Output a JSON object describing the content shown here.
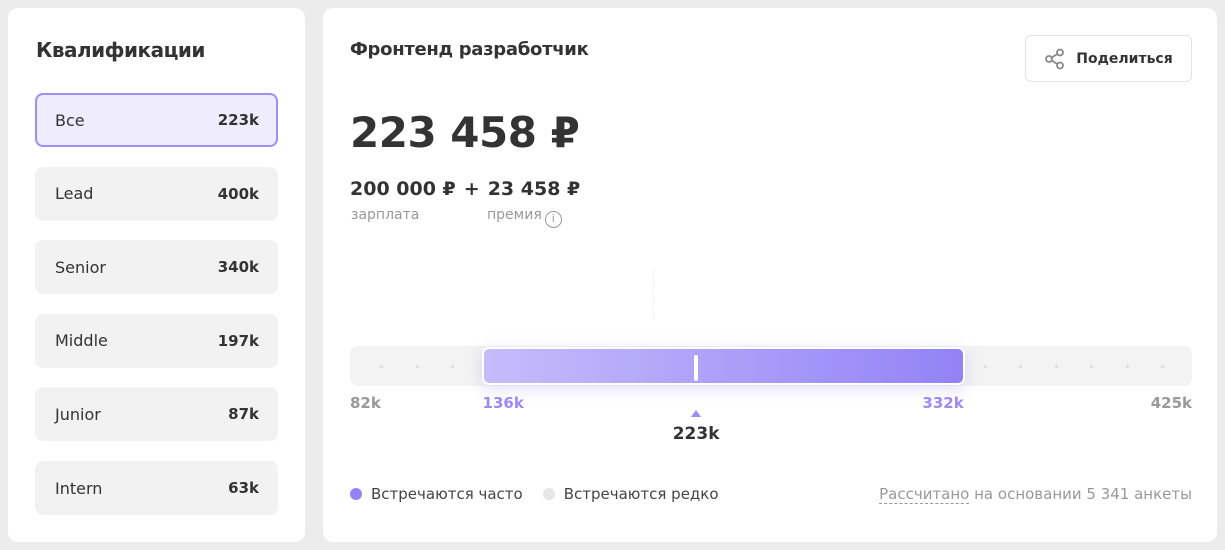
{
  "sidebar": {
    "title": "Квалификации",
    "items": [
      {
        "label": "Все",
        "value": "223k",
        "active": true
      },
      {
        "label": "Lead",
        "value": "400k"
      },
      {
        "label": "Senior",
        "value": "340k"
      },
      {
        "label": "Middle",
        "value": "197k"
      },
      {
        "label": "Junior",
        "value": "87k"
      },
      {
        "label": "Intern",
        "value": "63k"
      }
    ]
  },
  "main": {
    "title": "Фронтенд разработчик",
    "share_label": "Поделиться",
    "total": "223 458 ₽",
    "salary": "200 000 ₽",
    "plus": "+",
    "bonus": "23 458 ₽",
    "salary_label": "зарплата",
    "bonus_label": "премия",
    "info_glyph": "i",
    "range": {
      "min": 82,
      "max": 425,
      "low": 136,
      "high": 332,
      "median": 223,
      "min_label": "82k",
      "max_label": "425k",
      "low_label": "136k",
      "high_label": "332k",
      "median_label": "223k"
    },
    "legend": {
      "frequent": "Встречаются часто",
      "rare": "Встречаются редко"
    },
    "note_link": "Рассчитано",
    "note_rest": " на основании 5 341 анкеты"
  },
  "colors": {
    "accent": "#9d8af3",
    "frequent": "#9482f6",
    "rare": "#e6e6e6",
    "active_border": "#a28df5"
  }
}
